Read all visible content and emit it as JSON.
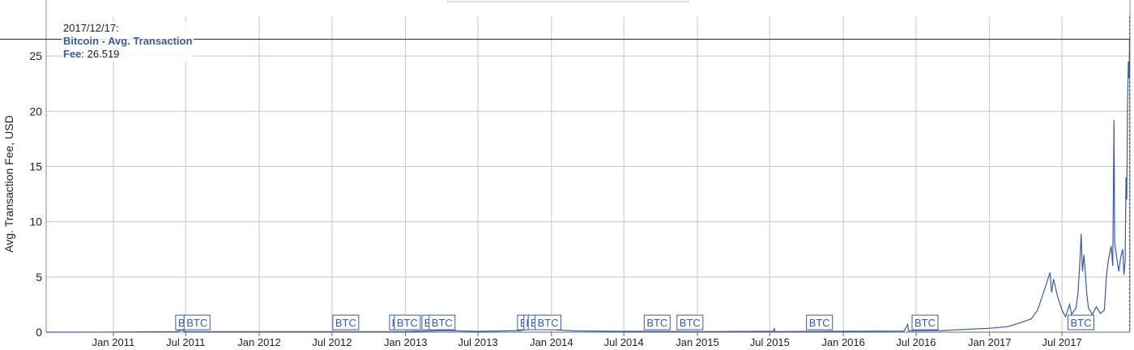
{
  "tooltip": {
    "date": "2017/12/17:",
    "series_label": "Bitcoin - Avg. Transaction",
    "series_label_cont": "Fee",
    "value": "26.519"
  },
  "chart_data": {
    "type": "line",
    "ylabel": "Avg. Transaction Fee, USD",
    "xlabel": "",
    "ylim": [
      0,
      28.6
    ],
    "xlim": [
      "2010-07-17",
      "2017-12-18"
    ],
    "yticks": [
      0,
      5,
      10,
      15,
      20,
      25
    ],
    "xticks": [
      "Jan 2011",
      "Jul 2011",
      "Jan 2012",
      "Jul 2012",
      "Jan 2013",
      "Jul 2013",
      "Jan 2014",
      "Jul 2014",
      "Jan 2015",
      "Jul 2015",
      "Jan 2016",
      "Jul 2016",
      "Jan 2017",
      "Jul 2017"
    ],
    "grid": true,
    "crosshair_value": 26.519,
    "series": [
      {
        "name": "Bitcoin - Avg. Transaction Fee",
        "color": "#3d5a99",
        "points": [
          [
            "2010-07-17",
            0.0
          ],
          [
            "2011-01-01",
            0.01
          ],
          [
            "2011-06-08",
            0.05
          ],
          [
            "2011-06-20",
            0.2
          ],
          [
            "2011-07-01",
            0.05
          ],
          [
            "2012-01-01",
            0.05
          ],
          [
            "2012-07-01",
            0.05
          ],
          [
            "2013-01-01",
            0.06
          ],
          [
            "2013-04-10",
            0.15
          ],
          [
            "2013-07-01",
            0.07
          ],
          [
            "2013-10-15",
            0.15
          ],
          [
            "2013-11-20",
            0.35
          ],
          [
            "2013-12-05",
            0.55
          ],
          [
            "2013-12-20",
            0.3
          ],
          [
            "2014-01-15",
            0.2
          ],
          [
            "2014-03-01",
            0.12
          ],
          [
            "2014-07-01",
            0.08
          ],
          [
            "2015-01-01",
            0.05
          ],
          [
            "2015-07-10",
            0.08
          ],
          [
            "2015-07-12",
            0.35
          ],
          [
            "2015-07-14",
            0.06
          ],
          [
            "2016-01-01",
            0.08
          ],
          [
            "2016-06-01",
            0.1
          ],
          [
            "2016-06-10",
            0.7
          ],
          [
            "2016-06-12",
            0.12
          ],
          [
            "2016-09-01",
            0.15
          ],
          [
            "2017-01-01",
            0.35
          ],
          [
            "2017-02-15",
            0.5
          ],
          [
            "2017-03-15",
            0.8
          ],
          [
            "2017-04-15",
            1.2
          ],
          [
            "2017-05-01",
            2.0
          ],
          [
            "2017-05-15",
            3.5
          ],
          [
            "2017-05-25",
            4.6
          ],
          [
            "2017-06-01",
            5.4
          ],
          [
            "2017-06-05",
            3.6
          ],
          [
            "2017-06-10",
            4.8
          ],
          [
            "2017-06-20",
            3.2
          ],
          [
            "2017-07-01",
            2.0
          ],
          [
            "2017-07-10",
            1.4
          ],
          [
            "2017-07-20",
            2.5
          ],
          [
            "2017-07-25",
            1.6
          ],
          [
            "2017-08-05",
            2.2
          ],
          [
            "2017-08-10",
            3.5
          ],
          [
            "2017-08-15",
            6.5
          ],
          [
            "2017-08-18",
            8.9
          ],
          [
            "2017-08-21",
            5.5
          ],
          [
            "2017-08-25",
            7.0
          ],
          [
            "2017-09-01",
            3.5
          ],
          [
            "2017-09-05",
            2.2
          ],
          [
            "2017-09-15",
            1.6
          ],
          [
            "2017-09-25",
            2.3
          ],
          [
            "2017-10-05",
            1.7
          ],
          [
            "2017-10-15",
            2.0
          ],
          [
            "2017-10-20",
            5.0
          ],
          [
            "2017-10-25",
            6.5
          ],
          [
            "2017-11-01",
            7.8
          ],
          [
            "2017-11-05",
            6.0
          ],
          [
            "2017-11-08",
            19.2
          ],
          [
            "2017-11-10",
            8.0
          ],
          [
            "2017-11-14",
            7.0
          ],
          [
            "2017-11-20",
            5.5
          ],
          [
            "2017-11-25",
            6.8
          ],
          [
            "2017-11-30",
            7.5
          ],
          [
            "2017-12-03",
            5.2
          ],
          [
            "2017-12-06",
            6.5
          ],
          [
            "2017-12-08",
            14.0
          ],
          [
            "2017-12-10",
            12.0
          ],
          [
            "2017-12-12",
            20.5
          ],
          [
            "2017-12-14",
            24.5
          ],
          [
            "2017-12-16",
            23.0
          ],
          [
            "2017-12-17",
            26.519
          ]
        ]
      }
    ],
    "markers": [
      {
        "date": "2011-06-10",
        "label": "BTC"
      },
      {
        "date": "2011-07-01",
        "label": "BTC"
      },
      {
        "date": "2012-07-07",
        "label": "BTC"
      },
      {
        "date": "2012-11-26",
        "label": "B"
      },
      {
        "date": "2012-12-08",
        "label": "BTC"
      },
      {
        "date": "2013-02-15",
        "label": "B"
      },
      {
        "date": "2013-03-05",
        "label": "BTC"
      },
      {
        "date": "2013-10-12",
        "label": "BTC"
      },
      {
        "date": "2013-10-28",
        "label": "B"
      },
      {
        "date": "2013-11-08",
        "label": "B"
      },
      {
        "date": "2013-11-25",
        "label": "BTC"
      },
      {
        "date": "2014-08-25",
        "label": "BTC"
      },
      {
        "date": "2014-11-15",
        "label": "BTC"
      },
      {
        "date": "2015-10-05",
        "label": "BTC"
      },
      {
        "date": "2016-06-25",
        "label": "BTC"
      },
      {
        "date": "2017-07-20",
        "label": "BTC"
      }
    ]
  }
}
